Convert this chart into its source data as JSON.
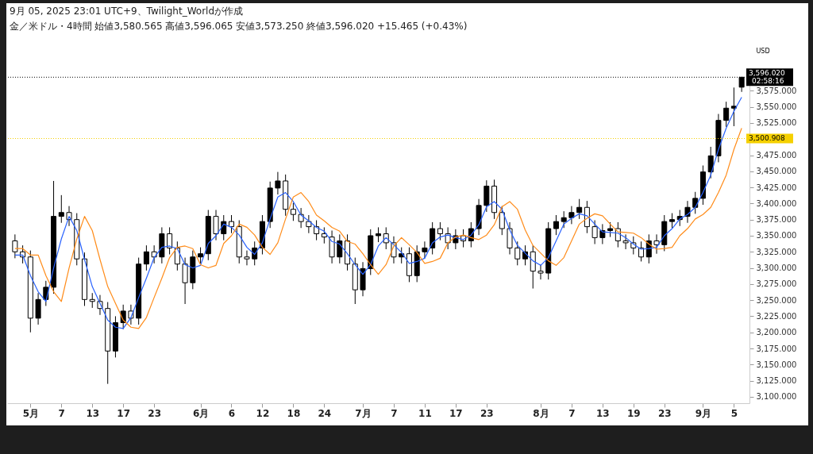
{
  "chart_data": {
    "type": "candlestick",
    "subtitle": "9月 05, 2025 23:01 UTC+9、Twilight_Worldが作成",
    "title": "金／米ドル・4時間 始値3,580.565 高値3,596.065 安値3,573.250 終値3,596.020 +15.465 (+0.43%)",
    "ylabel": "USD",
    "categories": [
      null,
      null,
      "5月",
      null,
      null,
      null,
      "7",
      null,
      null,
      null,
      "13",
      null,
      null,
      null,
      "17",
      null,
      null,
      null,
      "23",
      null,
      null,
      null,
      null,
      null,
      "6月",
      null,
      null,
      null,
      "6",
      null,
      null,
      null,
      "12",
      null,
      null,
      null,
      "18",
      null,
      null,
      null,
      "24",
      null,
      null,
      null,
      null,
      "7月",
      null,
      null,
      null,
      "7",
      null,
      null,
      null,
      "11",
      null,
      null,
      null,
      "17",
      null,
      null,
      null,
      "23",
      null,
      null,
      null,
      null,
      null,
      null,
      "8月",
      null,
      null,
      null,
      "7",
      null,
      null,
      null,
      "13",
      null,
      null,
      null,
      "19",
      null,
      null,
      null,
      "23",
      null,
      null,
      null,
      null,
      "9月",
      null,
      null,
      null,
      "5",
      null
    ],
    "series": [
      {
        "color": "#000000",
        "ohlc": [
          [
            3342,
            3352,
            3315,
            3325
          ],
          [
            3325,
            3335,
            3307,
            3317
          ],
          [
            3317,
            3327,
            3200,
            3222
          ],
          [
            3222,
            3261,
            3212,
            3251
          ],
          [
            3251,
            3280,
            3241,
            3270
          ],
          [
            3270,
            3435,
            3260,
            3380
          ],
          [
            3380,
            3413,
            3370,
            3386
          ],
          [
            3386,
            3396,
            3365,
            3375
          ],
          [
            3375,
            3385,
            3304,
            3314
          ],
          [
            3314,
            3324,
            3241,
            3251
          ],
          [
            3251,
            3261,
            3238,
            3248
          ],
          [
            3248,
            3258,
            3227,
            3237
          ],
          [
            3237,
            3247,
            3120,
            3171
          ],
          [
            3171,
            3225,
            3161,
            3215
          ],
          [
            3215,
            3243,
            3205,
            3233
          ],
          [
            3233,
            3243,
            3212,
            3222
          ],
          [
            3222,
            3316,
            3212,
            3306
          ],
          [
            3306,
            3335,
            3296,
            3325
          ],
          [
            3325,
            3335,
            3307,
            3317
          ],
          [
            3317,
            3363,
            3307,
            3353
          ],
          [
            3353,
            3363,
            3321,
            3331
          ],
          [
            3331,
            3341,
            3296,
            3306
          ],
          [
            3306,
            3316,
            3244,
            3277
          ],
          [
            3277,
            3327,
            3267,
            3317
          ],
          [
            3317,
            3332,
            3307,
            3322
          ],
          [
            3322,
            3390,
            3312,
            3380
          ],
          [
            3380,
            3390,
            3343,
            3353
          ],
          [
            3353,
            3382,
            3343,
            3372
          ],
          [
            3372,
            3382,
            3354,
            3364
          ],
          [
            3364,
            3374,
            3307,
            3317
          ],
          [
            3317,
            3327,
            3304,
            3314
          ],
          [
            3314,
            3341,
            3304,
            3331
          ],
          [
            3331,
            3382,
            3321,
            3372
          ],
          [
            3372,
            3434,
            3362,
            3424
          ],
          [
            3424,
            3449,
            3414,
            3435
          ],
          [
            3435,
            3445,
            3381,
            3391
          ],
          [
            3391,
            3401,
            3373,
            3383
          ],
          [
            3383,
            3393,
            3362,
            3372
          ],
          [
            3372,
            3382,
            3354,
            3364
          ],
          [
            3364,
            3374,
            3343,
            3353
          ],
          [
            3353,
            3363,
            3338,
            3348
          ],
          [
            3348,
            3358,
            3307,
            3317
          ],
          [
            3317,
            3352,
            3307,
            3342
          ],
          [
            3342,
            3352,
            3296,
            3306
          ],
          [
            3306,
            3316,
            3244,
            3266
          ],
          [
            3266,
            3309,
            3256,
            3299
          ],
          [
            3299,
            3360,
            3289,
            3350
          ],
          [
            3350,
            3363,
            3340,
            3353
          ],
          [
            3353,
            3363,
            3329,
            3339
          ],
          [
            3339,
            3349,
            3307,
            3317
          ],
          [
            3317,
            3332,
            3307,
            3322
          ],
          [
            3322,
            3332,
            3278,
            3288
          ],
          [
            3288,
            3335,
            3278,
            3325
          ],
          [
            3325,
            3341,
            3315,
            3331
          ],
          [
            3331,
            3371,
            3321,
            3361
          ],
          [
            3361,
            3371,
            3343,
            3353
          ],
          [
            3353,
            3363,
            3329,
            3339
          ],
          [
            3339,
            3360,
            3329,
            3350
          ],
          [
            3350,
            3360,
            3332,
            3342
          ],
          [
            3342,
            3371,
            3332,
            3361
          ],
          [
            3361,
            3407,
            3351,
            3397
          ],
          [
            3397,
            3436,
            3387,
            3427
          ],
          [
            3427,
            3437,
            3376,
            3386
          ],
          [
            3386,
            3396,
            3351,
            3361
          ],
          [
            3361,
            3371,
            3321,
            3331
          ],
          [
            3331,
            3341,
            3304,
            3314
          ],
          [
            3314,
            3335,
            3304,
            3325
          ],
          [
            3325,
            3335,
            3268,
            3295
          ],
          [
            3295,
            3305,
            3282,
            3292
          ],
          [
            3292,
            3371,
            3282,
            3361
          ],
          [
            3361,
            3382,
            3351,
            3372
          ],
          [
            3372,
            3388,
            3362,
            3378
          ],
          [
            3378,
            3396,
            3368,
            3386
          ],
          [
            3386,
            3407,
            3376,
            3394
          ],
          [
            3394,
            3404,
            3354,
            3364
          ],
          [
            3364,
            3374,
            3337,
            3347
          ],
          [
            3347,
            3368,
            3337,
            3358
          ],
          [
            3358,
            3371,
            3348,
            3361
          ],
          [
            3361,
            3371,
            3332,
            3342
          ],
          [
            3342,
            3352,
            3329,
            3339
          ],
          [
            3339,
            3349,
            3321,
            3331
          ],
          [
            3331,
            3341,
            3310,
            3317
          ],
          [
            3317,
            3352,
            3307,
            3342
          ],
          [
            3342,
            3352,
            3322,
            3336
          ],
          [
            3336,
            3382,
            3326,
            3372
          ],
          [
            3372,
            3385,
            3362,
            3375
          ],
          [
            3375,
            3390,
            3365,
            3380
          ],
          [
            3380,
            3404,
            3370,
            3394
          ],
          [
            3394,
            3418,
            3384,
            3408
          ],
          [
            3408,
            3459,
            3398,
            3449
          ],
          [
            3449,
            3488,
            3439,
            3474
          ],
          [
            3474,
            3539,
            3464,
            3529
          ],
          [
            3529,
            3558,
            3519,
            3548
          ],
          [
            3548,
            3580,
            3520,
            3551
          ],
          [
            3580.565,
            3596.065,
            3573.25,
            3596.02
          ]
        ]
      },
      {
        "type": "line",
        "color": "#2962ff",
        "values": [
          3320,
          3320,
          3288,
          3263,
          3248,
          3300,
          3345,
          3380,
          3358,
          3313,
          3271,
          3245,
          3219,
          3208,
          3206,
          3223,
          3254,
          3284,
          3316,
          3332,
          3334,
          3330,
          3305,
          3300,
          3304,
          3338,
          3350,
          3368,
          3363,
          3351,
          3332,
          3321,
          3339,
          3376,
          3410,
          3417,
          3403,
          3382,
          3373,
          3363,
          3357,
          3341,
          3337,
          3322,
          3305,
          3290,
          3305,
          3334,
          3347,
          3336,
          3324,
          3307,
          3310,
          3315,
          3339,
          3348,
          3351,
          3347,
          3344,
          3351,
          3367,
          3395,
          3403,
          3391,
          3359,
          3335,
          3323,
          3311,
          3304,
          3316,
          3342,
          3368,
          3377,
          3384,
          3381,
          3368,
          3356,
          3355,
          3354,
          3347,
          3337,
          3329,
          3330,
          3332,
          3350,
          3361,
          3376,
          3383,
          3394,
          3417,
          3444,
          3484,
          3517,
          3543,
          3565
        ]
      },
      {
        "type": "line",
        "color": "#ff8c1a",
        "values": [
          3330,
          3330,
          3320,
          3320,
          3288,
          3263,
          3248,
          3300,
          3345,
          3380,
          3358,
          3313,
          3271,
          3245,
          3219,
          3208,
          3206,
          3223,
          3254,
          3284,
          3316,
          3332,
          3334,
          3330,
          3305,
          3300,
          3304,
          3338,
          3350,
          3368,
          3363,
          3351,
          3332,
          3321,
          3339,
          3376,
          3410,
          3417,
          3403,
          3382,
          3373,
          3363,
          3357,
          3341,
          3337,
          3322,
          3305,
          3290,
          3305,
          3334,
          3347,
          3336,
          3324,
          3307,
          3310,
          3315,
          3339,
          3348,
          3351,
          3347,
          3344,
          3351,
          3367,
          3395,
          3403,
          3391,
          3359,
          3335,
          3323,
          3311,
          3304,
          3316,
          3342,
          3368,
          3377,
          3384,
          3381,
          3368,
          3356,
          3355,
          3354,
          3347,
          3337,
          3329,
          3330,
          3332,
          3350,
          3361,
          3376,
          3383,
          3394,
          3417,
          3444,
          3484,
          3517
        ]
      }
    ],
    "ylim": [
      3090,
      3605
    ],
    "yticks": [
      {
        "value": 3100,
        "label": "3,100.000"
      },
      {
        "value": 3125,
        "label": "3,125.000"
      },
      {
        "value": 3150,
        "label": "3,150.000"
      },
      {
        "value": 3175,
        "label": "3,175.000"
      },
      {
        "value": 3200,
        "label": "3,200.000"
      },
      {
        "value": 3225,
        "label": "3,225.000"
      },
      {
        "value": 3250,
        "label": "3,250.000"
      },
      {
        "value": 3275,
        "label": "3,275.000"
      },
      {
        "value": 3300,
        "label": "3,300.000"
      },
      {
        "value": 3325,
        "label": "3,325.000"
      },
      {
        "value": 3350,
        "label": "3,350.000"
      },
      {
        "value": 3375,
        "label": "3,375.000"
      },
      {
        "value": 3400,
        "label": "3,400.000"
      },
      {
        "value": 3425,
        "label": "3,425.000"
      },
      {
        "value": 3450,
        "label": "3,450.000"
      },
      {
        "value": 3475,
        "label": "3,475.000"
      },
      {
        "value": 3525,
        "label": "3,525.000"
      },
      {
        "value": 3550,
        "label": "3,550.000"
      },
      {
        "value": 3575,
        "label": "3,575.000"
      }
    ],
    "ref_lines": [
      {
        "axis": "y",
        "value": 3596.02,
        "label": "3,596.020",
        "color": "#000000",
        "line_style": "dotted"
      },
      {
        "axis": "y",
        "value": 3500.908,
        "label": "3,500.908",
        "color": "#f5d000",
        "line_style": "dotted"
      }
    ],
    "annotations": [
      "02:58:16"
    ]
  }
}
